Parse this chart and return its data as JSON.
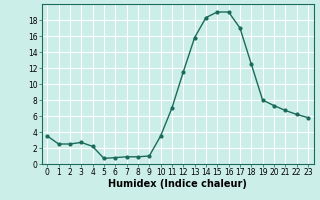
{
  "x": [
    0,
    1,
    2,
    3,
    4,
    5,
    6,
    7,
    8,
    9,
    10,
    11,
    12,
    13,
    14,
    15,
    16,
    17,
    18,
    19,
    20,
    21,
    22,
    23
  ],
  "y": [
    3.5,
    2.5,
    2.5,
    2.7,
    2.2,
    0.7,
    0.8,
    0.9,
    0.9,
    1.0,
    3.5,
    7.0,
    11.5,
    15.8,
    18.3,
    19.0,
    19.0,
    17.0,
    12.5,
    8.0,
    7.3,
    6.7,
    6.2,
    5.8
  ],
  "xlabel": "Humidex (Indice chaleur)",
  "xlim": [
    -0.5,
    23.5
  ],
  "ylim": [
    0,
    20
  ],
  "yticks": [
    0,
    2,
    4,
    6,
    8,
    10,
    12,
    14,
    16,
    18
  ],
  "xticks": [
    0,
    1,
    2,
    3,
    4,
    5,
    6,
    7,
    8,
    9,
    10,
    11,
    12,
    13,
    14,
    15,
    16,
    17,
    18,
    19,
    20,
    21,
    22,
    23
  ],
  "line_color": "#1a6b5a",
  "marker": "o",
  "marker_size": 2.0,
  "line_width": 1.0,
  "bg_color": "#cceee8",
  "grid_color": "#ffffff",
  "label_fontsize": 7,
  "tick_fontsize": 5.5
}
